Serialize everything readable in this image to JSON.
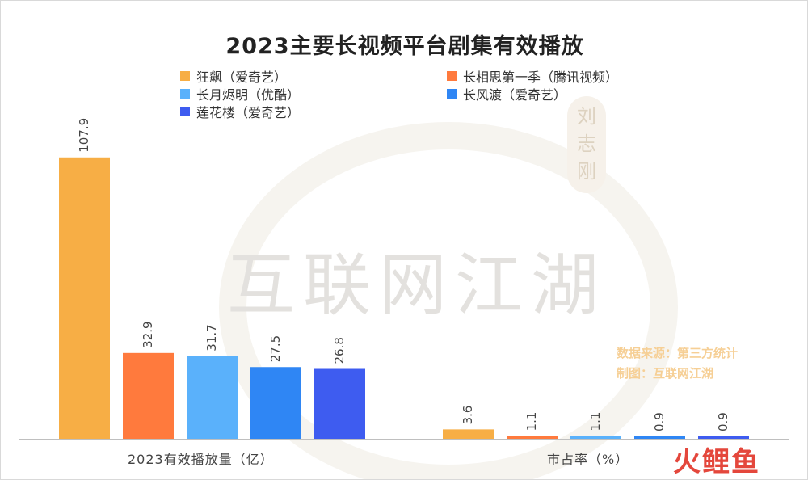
{
  "chart_data": {
    "type": "bar",
    "title": "2023主要长视频平台剧集有效播放",
    "groups": [
      "2023有效播放量（亿）",
      "市占率（%）"
    ],
    "series": [
      {
        "name": "狂飙（爱奇艺）",
        "color": "#f7ae45",
        "values": [
          107.9,
          3.6
        ]
      },
      {
        "name": "长相思第一季（腾讯视频）",
        "color": "#ff7a3d",
        "values": [
          32.9,
          1.1
        ]
      },
      {
        "name": "长月烬明（优酷）",
        "color": "#5ab1fb",
        "values": [
          31.7,
          1.1
        ]
      },
      {
        "name": "长风渡（爱奇艺）",
        "color": "#2f86f4",
        "values": [
          27.5,
          0.9
        ]
      },
      {
        "name": "莲花楼（爱奇艺）",
        "color": "#3e5cf0",
        "values": [
          26.8,
          0.9
        ]
      }
    ],
    "value_labels": [
      [
        "107.9",
        "32.9",
        "31.7",
        "27.5",
        "26.8"
      ],
      [
        "3.6",
        "1.1",
        "1.1",
        "0.9",
        "0.9"
      ]
    ],
    "ylim": [
      0,
      110
    ],
    "grid": false,
    "legend_position": "top"
  },
  "annotations": {
    "source_line1": "数据来源：第三方统计",
    "source_line2": "制图：互联网江湖",
    "watermark_text": "互联网江湖",
    "seal_text": "刘志刚",
    "brand": "火鲤鱼"
  }
}
